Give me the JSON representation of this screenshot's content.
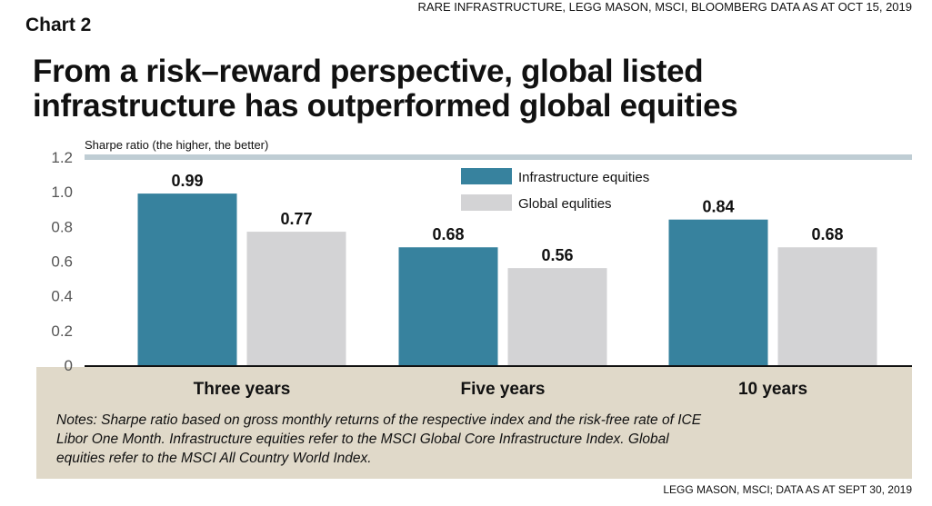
{
  "source_top": "RARE INFRASTRUCTURE, LEGG MASON, MSCI, BLOOMBERG DATA AS AT OCT 15, 2019",
  "chart_label": "Chart 2",
  "notes": "Notes: Sharpe ratio based on gross monthly returns of the respective index and the risk-free rate of ICE Libor One Month. Infrastructure equities refer to the MSCI Global Core Infrastructure Index. Global equities refer to the MSCI All Country World Index.",
  "source_bottom": "LEGG MASON, MSCI; DATA AS AT SEPT 30, 2019",
  "chart_data": {
    "type": "bar",
    "title": "From a risk–reward perspective, global listed infrastructure has outperformed global equities",
    "ylabel": "Sharpe ratio (the higher, the better)",
    "xlabel": "",
    "categories": [
      "Three years",
      "Five years",
      "10 years"
    ],
    "series": [
      {
        "name": "Infrastructure equities",
        "color": "#37829e",
        "values": [
          0.99,
          0.68,
          0.84
        ]
      },
      {
        "name": "Global equlities",
        "color": "#d3d3d5",
        "values": [
          0.77,
          0.56,
          0.68
        ]
      }
    ],
    "ylim": [
      0,
      1.2
    ],
    "yticks": [
      "0",
      "0.2",
      "0.4",
      "0.6",
      "0.8",
      "1.0",
      "1.2"
    ],
    "legend": "top-right"
  }
}
